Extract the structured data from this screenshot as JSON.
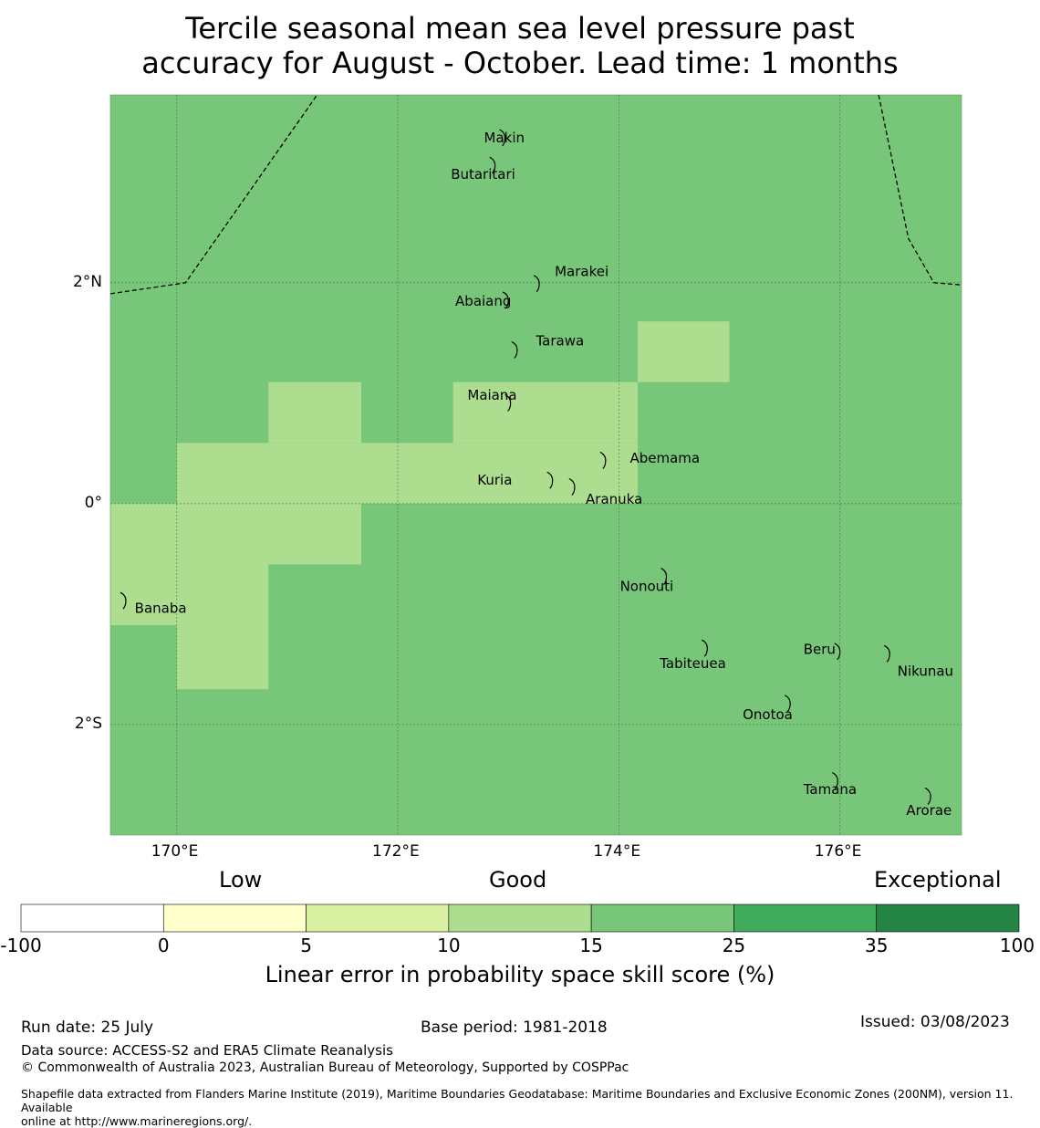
{
  "header": {
    "title_line1": "Tercile seasonal mean sea level pressure past",
    "title_line2": "accuracy for August - October. Lead time: 1 months"
  },
  "map": {
    "lon_range": [
      169.4,
      177.1
    ],
    "lat_range": [
      -3.0,
      3.7
    ],
    "background_color": "#78c679",
    "highlight_color": "#addd8e",
    "highlight_cells": [
      {
        "lon": [
          174.17,
          175.0
        ],
        "lat": [
          1.65,
          1.1
        ]
      },
      {
        "lon": [
          170.83,
          171.67
        ],
        "lat": [
          1.1,
          0.55
        ]
      },
      {
        "lon": [
          172.5,
          174.17
        ],
        "lat": [
          1.1,
          0.55
        ]
      },
      {
        "lon": [
          170.0,
          174.17
        ],
        "lat": [
          0.55,
          0.0
        ]
      },
      {
        "lon": [
          169.4,
          171.67
        ],
        "lat": [
          0.0,
          -0.55
        ]
      },
      {
        "lon": [
          169.4,
          170.83
        ],
        "lat": [
          -0.55,
          -1.1
        ]
      },
      {
        "lon": [
          170.0,
          170.83
        ],
        "lat": [
          -1.1,
          -1.68
        ]
      }
    ],
    "x_ticks": [
      {
        "lon": 170,
        "label": "170°E"
      },
      {
        "lon": 172,
        "label": "172°E"
      },
      {
        "lon": 174,
        "label": "174°E"
      },
      {
        "lon": 176,
        "label": "176°E"
      }
    ],
    "y_ticks": [
      {
        "lat": 2,
        "label": "2°N"
      },
      {
        "lat": 0,
        "label": "0°"
      },
      {
        "lat": -2,
        "label": "2°S"
      }
    ],
    "boundary_left": [
      [
        169.4,
        1.9
      ],
      [
        170.08,
        2.0
      ],
      [
        171.27,
        3.7
      ]
    ],
    "boundary_right": [
      [
        176.35,
        3.7
      ],
      [
        176.62,
        2.4
      ],
      [
        176.85,
        2.0
      ],
      [
        177.1,
        1.98
      ]
    ],
    "islands": [
      {
        "name": "Makin",
        "lon": 172.97,
        "lat": 3.32,
        "label_lon": 172.78,
        "label_lat": 3.32
      },
      {
        "name": "Butaritari",
        "lon": 172.88,
        "lat": 3.07,
        "label_lon": 172.48,
        "label_lat": 2.99
      },
      {
        "name": "Marakei",
        "lon": 173.28,
        "lat": 2.0,
        "label_lon": 173.42,
        "label_lat": 2.11
      },
      {
        "name": "Abaiang",
        "lon": 173.0,
        "lat": 1.85,
        "label_lon": 172.52,
        "label_lat": 1.84
      },
      {
        "name": "Tarawa",
        "lon": 173.08,
        "lat": 1.4,
        "label_lon": 173.25,
        "label_lat": 1.48
      },
      {
        "name": "Maiana",
        "lon": 173.02,
        "lat": 0.92,
        "label_lon": 172.63,
        "label_lat": 0.99
      },
      {
        "name": "Abemama",
        "lon": 173.88,
        "lat": 0.4,
        "label_lon": 174.1,
        "label_lat": 0.42
      },
      {
        "name": "Kuria",
        "lon": 173.4,
        "lat": 0.22,
        "label_lon": 172.72,
        "label_lat": 0.22
      },
      {
        "name": "Aranuka",
        "lon": 173.6,
        "lat": 0.16,
        "label_lon": 173.7,
        "label_lat": 0.05
      },
      {
        "name": "Nonouti",
        "lon": 174.43,
        "lat": -0.65,
        "label_lon": 174.01,
        "label_lat": -0.74
      },
      {
        "name": "Banaba",
        "lon": 169.54,
        "lat": -0.87,
        "label_lon": 169.62,
        "label_lat": -0.94
      },
      {
        "name": "Tabiteuea",
        "lon": 174.8,
        "lat": -1.3,
        "label_lon": 174.37,
        "label_lat": -1.44
      },
      {
        "name": "Beru",
        "lon": 176.0,
        "lat": -1.33,
        "label_lon": 175.67,
        "label_lat": -1.31
      },
      {
        "name": "Nikunau",
        "lon": 176.45,
        "lat": -1.35,
        "label_lon": 176.52,
        "label_lat": -1.51
      },
      {
        "name": "Onotoa",
        "lon": 175.55,
        "lat": -1.8,
        "label_lon": 175.12,
        "label_lat": -1.9
      },
      {
        "name": "Tamana",
        "lon": 175.98,
        "lat": -2.5,
        "label_lon": 175.67,
        "label_lat": -2.58
      },
      {
        "name": "Arorae",
        "lon": 176.82,
        "lat": -2.64,
        "label_lon": 176.6,
        "label_lat": -2.77
      }
    ]
  },
  "legend": {
    "categories": [
      "Low",
      "Good",
      "Exceptional"
    ],
    "bins": [
      {
        "from": "-100",
        "to": "0",
        "color": "#ffffff"
      },
      {
        "from": "0",
        "to": "5",
        "color": "#ffffcc"
      },
      {
        "from": "5",
        "to": "10",
        "color": "#d9f0a3"
      },
      {
        "from": "10",
        "to": "15",
        "color": "#addd8e"
      },
      {
        "from": "15",
        "to": "25",
        "color": "#78c679"
      },
      {
        "from": "25",
        "to": "35",
        "color": "#41ab5d"
      },
      {
        "from": "35",
        "to": "100",
        "color": "#238443"
      }
    ],
    "tick_labels": [
      "-100",
      "0",
      "5",
      "10",
      "15",
      "25",
      "35",
      "100"
    ],
    "label": "Linear error in probability space skill score (%)"
  },
  "footer": {
    "run_date": "Run date: 25 July",
    "base_period": "Base period: 1981-2018",
    "issued": "Issued: 03/08/2023",
    "data_source": "Data source: ACCESS-S2 and ERA5 Climate Reanalysis",
    "copyright": "© Commonwealth of Australia 2023, Australian Bureau of Meteorology, Supported by COSPPac",
    "shapefile_line1": "Shapefile data extracted from Flanders Marine Institute (2019), Maritime Boundaries Geodatabase: Maritime Boundaries and Exclusive Economic Zones (200NM), version 11. Available",
    "shapefile_line2": "online at http://www.marineregions.org/."
  }
}
